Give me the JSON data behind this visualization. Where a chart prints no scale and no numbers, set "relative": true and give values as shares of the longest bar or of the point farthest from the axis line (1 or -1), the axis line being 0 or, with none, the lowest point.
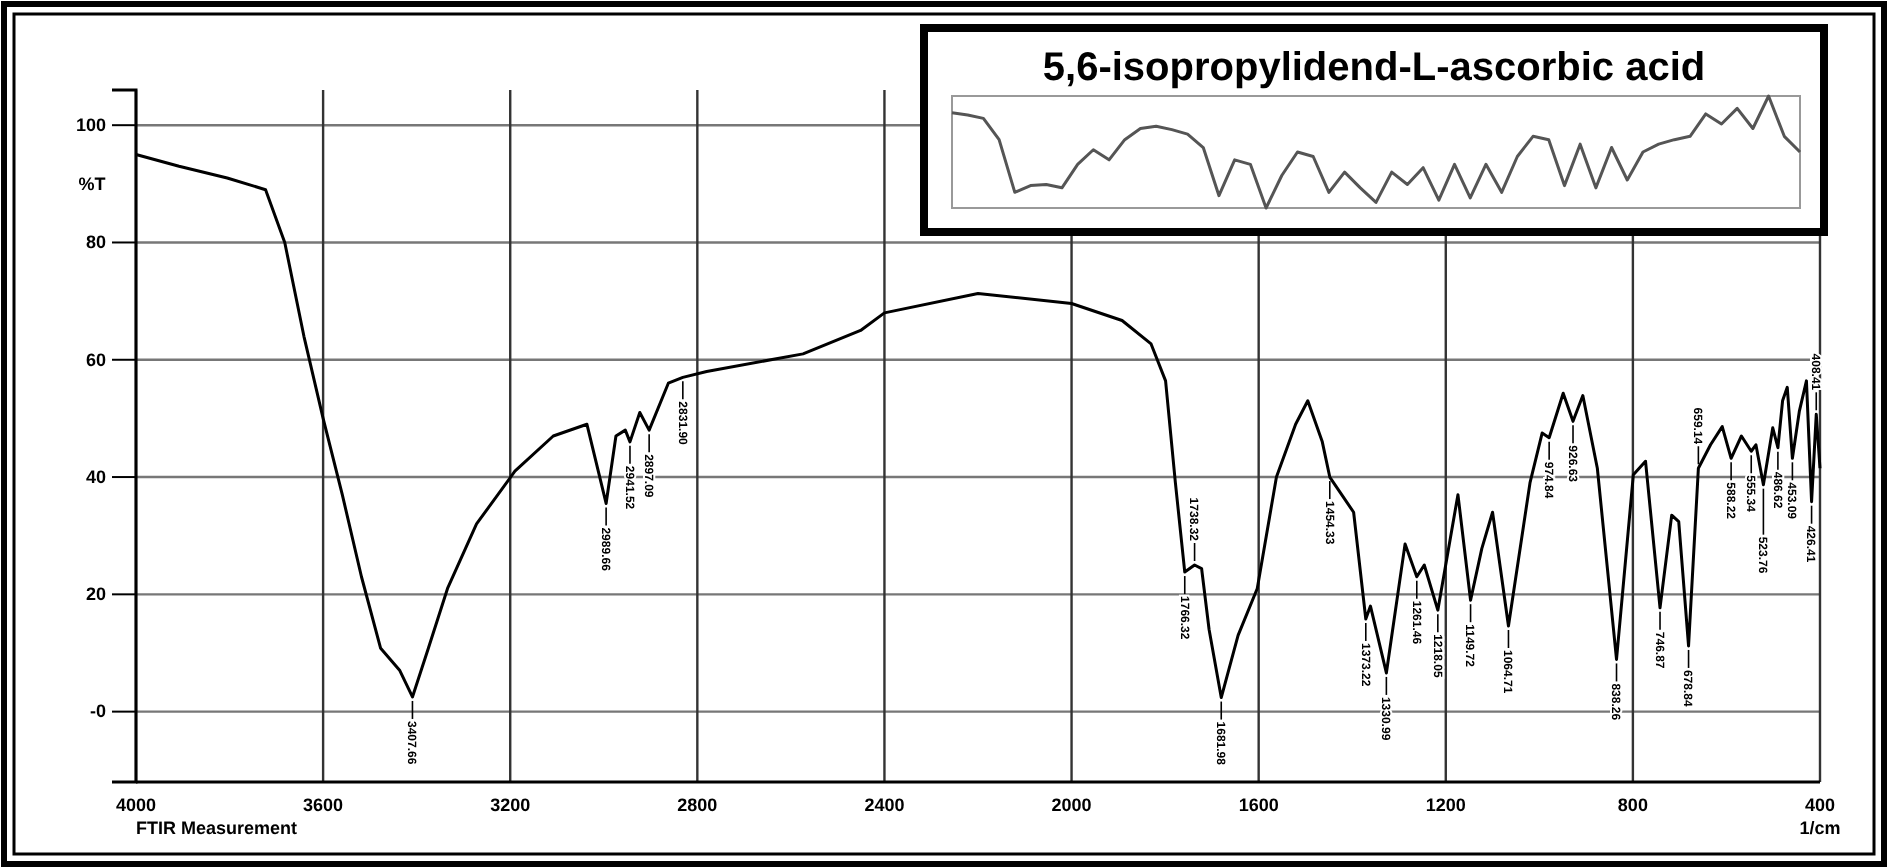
{
  "chart_data": [
    {
      "type": "line",
      "ylabel": "%T",
      "xlabel": "1/cm",
      "xlim": [
        4000,
        400
      ],
      "xticks": [
        4000,
        3600,
        3200,
        2800,
        2400,
        2000,
        1600,
        1200,
        800,
        400
      ],
      "ylim": [
        -12,
        106
      ],
      "yticks": [
        {
          "value": 0,
          "label": "-0"
        },
        20,
        40,
        60,
        80,
        100
      ],
      "grid": true,
      "series": [
        {
          "color": "#000000",
          "x": [
            4000,
            3908,
            3805,
            3723,
            3682,
            3641,
            3600,
            3559,
            3518,
            3477,
            3436,
            3409,
            3375,
            3334,
            3272,
            3190,
            3108,
            3036,
            2995,
            2974,
            2954,
            2944,
            2923,
            2903,
            2862,
            2831,
            2780,
            2574,
            2451,
            2400,
            2200,
            2000,
            1892,
            1830,
            1799,
            1778,
            1758,
            1737,
            1722,
            1706,
            1680,
            1644,
            1603,
            1562,
            1521,
            1495,
            1464,
            1448,
            1397,
            1371,
            1361,
            1327,
            1287,
            1262,
            1246,
            1217,
            1174,
            1147,
            1123,
            1100,
            1066,
            1020,
            994,
            979,
            949,
            928,
            907,
            876,
            835,
            799,
            773,
            742,
            717,
            702,
            681,
            660,
            634,
            609,
            590,
            568,
            547,
            537,
            521,
            501,
            490,
            480,
            470,
            459,
            444,
            429,
            418,
            408,
            400
          ],
          "values": [
            95,
            93,
            91,
            89,
            80,
            64,
            50,
            37,
            23,
            10.8,
            7,
            2.5,
            10.8,
            21,
            32,
            41,
            47,
            49,
            35.5,
            47,
            48,
            46,
            51,
            48,
            56,
            57,
            58,
            61,
            65,
            68,
            71.3,
            69.6,
            66.7,
            62.7,
            56.4,
            39,
            23.8,
            25,
            24.4,
            14,
            2.4,
            13,
            21,
            40,
            49,
            53,
            46,
            40,
            34,
            15.8,
            18,
            6.6,
            28.6,
            23,
            25,
            17.3,
            37,
            19,
            27.8,
            34,
            14.6,
            39,
            47.5,
            46.7,
            54.3,
            49.5,
            53.9,
            41.5,
            8.9,
            40.4,
            42.7,
            17.7,
            33.5,
            32.4,
            11.2,
            41.5,
            45.5,
            48.6,
            43.2,
            47,
            44.4,
            45.5,
            38.7,
            48.4,
            45,
            53,
            55.3,
            43.2,
            51.3,
            56.4,
            35.8,
            50.7,
            41.5
          ]
        }
      ],
      "annotations": [
        "FTIR Measurement",
        {
          "text": "3407.66",
          "x": 3409,
          "y": 2.5
        },
        {
          "text": "2989.66",
          "x": 2995,
          "y": 35.5
        },
        {
          "text": "2941.52",
          "x": 2944,
          "y": 46
        },
        {
          "text": "2897.09",
          "x": 2903,
          "y": 48
        },
        {
          "text": "2831.90",
          "x": 2831,
          "y": 57
        },
        {
          "text": "1766.32",
          "x": 1758,
          "y": 23.8
        },
        {
          "text": "1738.32",
          "x": 1737,
          "y": 25
        },
        {
          "text": "1681.98",
          "x": 1680,
          "y": 2.4
        },
        {
          "text": "1454.33",
          "x": 1448,
          "y": 40
        },
        {
          "text": "1373.22",
          "x": 1371,
          "y": 15.8
        },
        {
          "text": "1330.99",
          "x": 1327,
          "y": 6.6
        },
        {
          "text": "1261.46",
          "x": 1262,
          "y": 23
        },
        {
          "text": "1218.05",
          "x": 1217,
          "y": 17.3
        },
        {
          "text": "1149.72",
          "x": 1147,
          "y": 19
        },
        {
          "text": "1064.71",
          "x": 1066,
          "y": 14.6
        },
        {
          "text": "974.84",
          "x": 979,
          "y": 46.7
        },
        {
          "text": "926.63",
          "x": 928,
          "y": 49.5
        },
        {
          "text": "838.26",
          "x": 835,
          "y": 8.9
        },
        {
          "text": "746.87",
          "x": 742,
          "y": 17.7
        },
        {
          "text": "678.84",
          "x": 681,
          "y": 11.2
        },
        {
          "text": "659.14",
          "x": 660,
          "y": 41.5
        },
        {
          "text": "588.22",
          "x": 590,
          "y": 43.2
        },
        {
          "text": "555.34",
          "x": 547,
          "y": 44.4
        },
        {
          "text": "523.76",
          "x": 521,
          "y": 38.7
        },
        {
          "text": "486.62",
          "x": 490,
          "y": 45
        },
        {
          "text": "453.09",
          "x": 459,
          "y": 43.2
        },
        {
          "text": "426.41",
          "x": 418,
          "y": 35.8
        },
        {
          "text": "408.41",
          "x": 408,
          "y": 50.7
        }
      ]
    },
    {
      "type": "line",
      "title": "5,6-isopropylidend-L-ascorbic acid",
      "relative": true,
      "categories": [
        null,
        null,
        null,
        null,
        null,
        null,
        null,
        null,
        null,
        null,
        null,
        null,
        null,
        null,
        null,
        null,
        null,
        null,
        null,
        null,
        null,
        null,
        null,
        null,
        null,
        null,
        null,
        null,
        null,
        null,
        null,
        null,
        null,
        null,
        null,
        null,
        null,
        null,
        null,
        null,
        null,
        null,
        null,
        null,
        null,
        null,
        null,
        null,
        null,
        null,
        null,
        null,
        null,
        null,
        null
      ],
      "series": [
        {
          "color": "#555555",
          "values": [
            0.85,
            0.83,
            0.8,
            0.61,
            0.14,
            0.2,
            0.21,
            0.18,
            0.39,
            0.52,
            0.43,
            0.61,
            0.71,
            0.73,
            0.7,
            0.66,
            0.54,
            0.11,
            0.43,
            0.39,
            0,
            0.29,
            0.5,
            0.46,
            0.14,
            0.32,
            0.18,
            0.05,
            0.32,
            0.21,
            0.36,
            0.07,
            0.39,
            0.09,
            0.39,
            0.14,
            0.46,
            0.64,
            0.61,
            0.2,
            0.57,
            0.18,
            0.54,
            0.25,
            0.5,
            0.57,
            0.61,
            0.64,
            0.84,
            0.75,
            0.89,
            0.71,
            1,
            0.64,
            0.5
          ]
        }
      ]
    }
  ]
}
